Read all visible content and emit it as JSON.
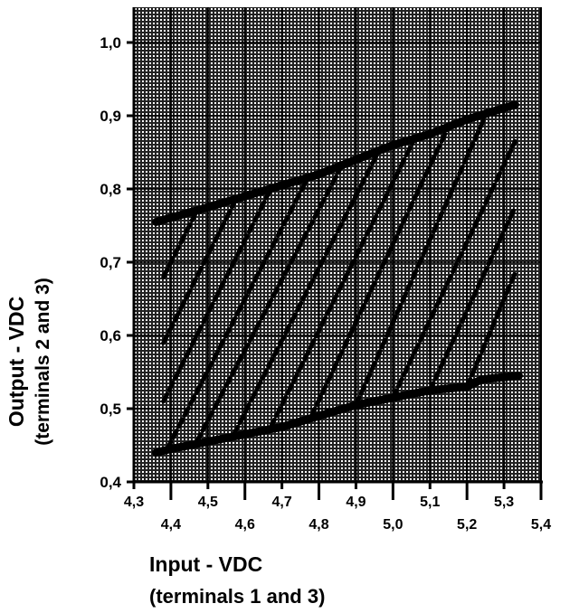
{
  "chart_data": {
    "type": "line",
    "title": "",
    "xlabel": "Input - VDC",
    "xlabel_sub": "(terminals 1 and 3)",
    "ylabel": "Output - VDC",
    "ylabel_sub": "(terminals 2 and 3)",
    "xlim": [
      4.3,
      5.4
    ],
    "ylim": [
      0.4,
      1.05
    ],
    "grid": true,
    "x_ticks": [
      "4,3",
      "4,4",
      "4,5",
      "4,6",
      "4,7",
      "4,8",
      "4,9",
      "5,0",
      "5,1",
      "5,2",
      "5,3",
      "5,4"
    ],
    "x_tick_values": [
      4.3,
      4.4,
      4.5,
      4.6,
      4.7,
      4.8,
      4.9,
      5.0,
      5.1,
      5.2,
      5.3,
      5.4
    ],
    "y_ticks": [
      "0,4",
      "0,5",
      "0,6",
      "0,7",
      "0,8",
      "0,9",
      "1,0"
    ],
    "y_tick_values": [
      0.4,
      0.5,
      0.6,
      0.7,
      0.8,
      0.9,
      1.0
    ],
    "upper_limit": {
      "x": [
        4.36,
        4.5,
        4.6,
        4.7,
        4.8,
        4.9,
        5.0,
        5.1,
        5.2,
        5.33
      ],
      "y": [
        0.755,
        0.775,
        0.79,
        0.805,
        0.82,
        0.84,
        0.86,
        0.875,
        0.895,
        0.915
      ]
    },
    "lower_limit": {
      "x": [
        4.36,
        4.4,
        4.5,
        4.6,
        4.7,
        4.8,
        4.9,
        5.0,
        5.1,
        5.2,
        5.24,
        5.34
      ],
      "y": [
        0.44,
        0.445,
        0.455,
        0.465,
        0.475,
        0.49,
        0.505,
        0.515,
        0.525,
        0.53,
        0.54,
        0.545
      ]
    },
    "diagonals": [
      {
        "x": [
          4.38,
          4.47
        ],
        "y": [
          0.68,
          0.77
        ]
      },
      {
        "x": [
          4.38,
          4.57
        ],
        "y": [
          0.59,
          0.78
        ]
      },
      {
        "x": [
          4.38,
          4.67
        ],
        "y": [
          0.51,
          0.8
        ]
      },
      {
        "x": [
          4.39,
          4.77
        ],
        "y": [
          0.445,
          0.815
        ]
      },
      {
        "x": [
          4.47,
          4.86
        ],
        "y": [
          0.455,
          0.83
        ]
      },
      {
        "x": [
          4.57,
          4.96
        ],
        "y": [
          0.465,
          0.85
        ]
      },
      {
        "x": [
          4.67,
          5.06
        ],
        "y": [
          0.475,
          0.87
        ]
      },
      {
        "x": [
          4.78,
          5.15
        ],
        "y": [
          0.49,
          0.885
        ]
      },
      {
        "x": [
          4.9,
          5.25
        ],
        "y": [
          0.505,
          0.9
        ]
      },
      {
        "x": [
          5.0,
          5.33
        ],
        "y": [
          0.515,
          0.865
        ]
      },
      {
        "x": [
          5.1,
          5.33
        ],
        "y": [
          0.525,
          0.775
        ]
      },
      {
        "x": [
          5.2,
          5.33
        ],
        "y": [
          0.53,
          0.685
        ]
      }
    ]
  }
}
